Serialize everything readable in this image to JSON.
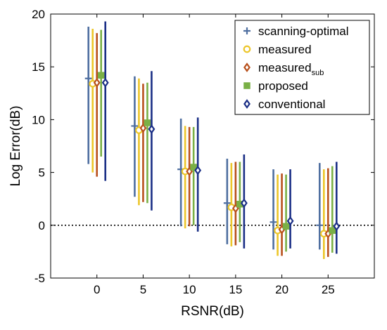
{
  "chart_data": {
    "type": "errorbar",
    "title": "",
    "xlabel": "RSNR(dB)",
    "ylabel": "Log Error(dB)",
    "x_ticks": [
      0,
      5,
      10,
      15,
      20,
      25
    ],
    "y_ticks": [
      -5,
      0,
      5,
      10,
      15,
      20
    ],
    "xlim": [
      -5,
      30
    ],
    "ylim": [
      -5,
      20
    ],
    "grid": false,
    "reference_line": {
      "y": 0,
      "style": "dotted",
      "color": "#000000"
    },
    "legend": {
      "placement": "top-right"
    },
    "series": [
      {
        "name": "scanning-optimal",
        "marker": "plus",
        "color": "#4f6fa0",
        "x": [
          0,
          5,
          10,
          15,
          20,
          25
        ],
        "y": [
          13.9,
          9.4,
          5.3,
          2.1,
          0.3,
          0.0
        ],
        "lower": [
          5.8,
          2.7,
          -0.1,
          -1.8,
          -2.3,
          -2.3
        ],
        "upper": [
          18.8,
          14.1,
          10.1,
          6.3,
          5.3,
          5.9
        ]
      },
      {
        "name": "measured",
        "marker": "circle",
        "color": "#ecc62a",
        "x": [
          0,
          5,
          10,
          15,
          20,
          25
        ],
        "y": [
          13.4,
          9.0,
          5.1,
          1.7,
          -0.5,
          -0.8
        ],
        "lower": [
          5.0,
          1.9,
          -0.3,
          -2.0,
          -2.9,
          -3.2
        ],
        "upper": [
          18.6,
          13.9,
          9.4,
          5.9,
          4.8,
          5.3
        ]
      },
      {
        "name": "measured",
        "name_sub": "sub",
        "marker": "diamond-open",
        "color": "#b8501c",
        "x": [
          0,
          5,
          10,
          15,
          20,
          25
        ],
        "y": [
          13.5,
          9.2,
          5.1,
          1.6,
          -0.4,
          -0.8
        ],
        "lower": [
          4.6,
          2.2,
          -0.1,
          -1.9,
          -2.9,
          -3.0
        ],
        "upper": [
          18.2,
          13.4,
          9.3,
          6.0,
          4.9,
          5.4
        ]
      },
      {
        "name": "proposed",
        "marker": "square",
        "color": "#7ab046",
        "x": [
          0,
          5,
          10,
          15,
          20,
          25
        ],
        "y": [
          14.2,
          9.7,
          5.5,
          2.0,
          -0.1,
          -0.5
        ],
        "lower": [
          6.5,
          2.1,
          0.0,
          -1.6,
          -2.5,
          -2.6
        ],
        "upper": [
          18.5,
          13.5,
          9.3,
          6.0,
          4.8,
          5.6
        ]
      },
      {
        "name": "conventional",
        "marker": "diamond-open",
        "color": "#1b2f86",
        "x": [
          0,
          5,
          10,
          15,
          20,
          25
        ],
        "y": [
          13.5,
          9.1,
          5.2,
          2.1,
          0.4,
          -0.1
        ],
        "lower": [
          4.2,
          1.4,
          -0.6,
          -2.2,
          -2.2,
          -2.7
        ],
        "upper": [
          19.3,
          14.6,
          10.2,
          6.7,
          5.3,
          6.0
        ]
      }
    ]
  }
}
